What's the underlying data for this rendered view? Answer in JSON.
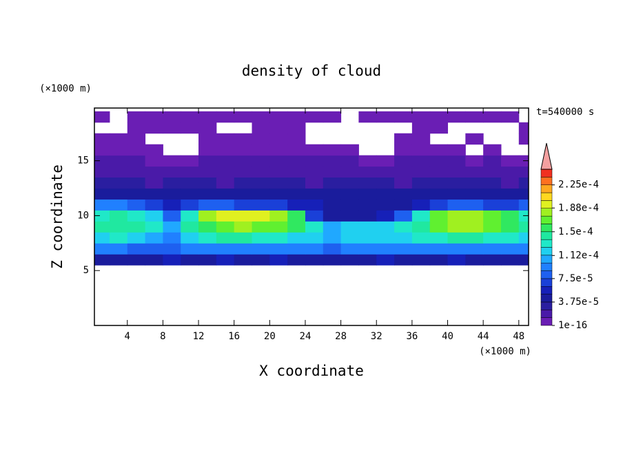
{
  "chart_data": {
    "type": "contour",
    "title": "density of cloud",
    "annotation": "t=540000 s",
    "xlabel": "X coordinate",
    "ylabel": "Z coordinate",
    "xunit": "(×1000 m)",
    "yunit": "(×1000 m)",
    "xlim": [
      0.3,
      49.1
    ],
    "ylim": [
      0,
      19.8
    ],
    "xticks": [
      4,
      8,
      12,
      16,
      20,
      24,
      28,
      32,
      36,
      40,
      44,
      48
    ],
    "yticks": [
      5,
      10,
      15
    ],
    "x": [
      1,
      3,
      5,
      7,
      9,
      11,
      13,
      15,
      17,
      19,
      21,
      23,
      25,
      27,
      29,
      31,
      33,
      35,
      37,
      39,
      41,
      43,
      45,
      47,
      49
    ],
    "z": [
      6,
      7,
      8,
      9,
      10,
      11,
      12,
      13,
      14,
      15,
      16,
      17,
      18,
      19
    ],
    "values": [
      [
        5e-05,
        5e-05,
        4e-05,
        5e-05,
        6e-05,
        5e-05,
        5e-05,
        6e-05,
        5e-05,
        5e-05,
        6e-05,
        5e-05,
        5e-05,
        4e-05,
        5e-05,
        5e-05,
        6e-05,
        5e-05,
        5e-05,
        5e-05,
        6e-05,
        5e-05,
        5e-05,
        5e-05,
        5e-05
      ],
      [
        9e-05,
        9e-05,
        8e-05,
        8e-05,
        8e-05,
        9e-05,
        0.0001,
        0.0001,
        9e-05,
        0.0001,
        0.0001,
        9e-05,
        9e-05,
        8e-05,
        9e-05,
        9e-05,
        0.0001,
        0.0001,
        9e-05,
        9e-05,
        0.0001,
        0.0001,
        9e-05,
        9e-05,
        9e-05
      ],
      [
        0.00012,
        0.00013,
        0.000125,
        0.00011,
        0.0001,
        0.00012,
        0.000135,
        0.00014,
        0.00014,
        0.000135,
        0.00013,
        0.000125,
        0.000115,
        0.00011,
        0.00012,
        0.00012,
        0.00012,
        0.000125,
        0.00013,
        0.000135,
        0.00014,
        0.00014,
        0.000135,
        0.00013,
        0.00012
      ],
      [
        0.000145,
        0.00015,
        0.000145,
        0.00013,
        0.00011,
        0.00014,
        0.00016,
        0.000175,
        0.00018,
        0.000175,
        0.00017,
        0.000155,
        0.00013,
        0.00011,
        0.00012,
        0.000115,
        0.00012,
        0.00013,
        0.00015,
        0.00017,
        0.00018,
        0.00018,
        0.00017,
        0.000155,
        0.00014
      ],
      [
        0.000135,
        0.00014,
        0.000135,
        0.00012,
        8e-05,
        0.00013,
        0.00018,
        0.000195,
        0.000195,
        0.00019,
        0.00018,
        0.00016,
        7e-05,
        5e-05,
        5e-05,
        5e-05,
        6e-05,
        8e-05,
        0.00013,
        0.000175,
        0.000185,
        0.000185,
        0.000175,
        0.000155,
        0.00013
      ],
      [
        9e-05,
        9e-05,
        8e-05,
        7e-05,
        6e-05,
        7e-05,
        8e-05,
        8e-05,
        7e-05,
        7e-05,
        7e-05,
        6e-05,
        6e-05,
        5e-05,
        4e-05,
        4e-05,
        4e-05,
        5e-05,
        6e-05,
        7e-05,
        8e-05,
        8e-05,
        7e-05,
        7e-05,
        8e-05
      ],
      [
        5e-05,
        5e-05,
        4e-05,
        4e-05,
        4e-05,
        4e-05,
        4e-05,
        4e-05,
        4e-05,
        4e-05,
        4e-05,
        4e-05,
        4e-05,
        4e-05,
        4e-05,
        4e-05,
        4e-05,
        4e-05,
        4e-05,
        4e-05,
        5e-05,
        5e-05,
        4e-05,
        4e-05,
        5e-05
      ],
      [
        3e-05,
        3e-05,
        3e-05,
        2.5e-05,
        3e-05,
        3e-05,
        3e-05,
        2.5e-05,
        3e-05,
        3e-05,
        3e-05,
        3e-05,
        2.5e-05,
        3e-05,
        3e-05,
        3e-05,
        3e-05,
        2.5e-05,
        3e-05,
        3e-05,
        3e-05,
        3e-05,
        3e-05,
        2.5e-05,
        3e-05
      ],
      [
        2e-05,
        2e-05,
        2e-05,
        2e-05,
        2e-05,
        1.5e-05,
        2e-05,
        2e-05,
        2e-05,
        2e-05,
        2e-05,
        2e-05,
        2e-05,
        2e-05,
        2e-05,
        1.5e-05,
        2e-05,
        2e-05,
        2e-05,
        2e-05,
        2e-05,
        2e-05,
        2e-05,
        2e-05,
        2e-05
      ],
      [
        1.5e-05,
        1.5e-05,
        1.5e-05,
        1e-05,
        1e-05,
        1e-05,
        1.5e-05,
        1.5e-05,
        1.5e-05,
        1.5e-05,
        1.5e-05,
        1.5e-05,
        1.5e-05,
        1.5e-05,
        1.5e-05,
        1e-05,
        1e-05,
        1.5e-05,
        1.5e-05,
        1.5e-05,
        1.5e-05,
        1e-05,
        1.5e-05,
        1e-05,
        1e-05
      ],
      [
        1e-05,
        1e-05,
        8e-06,
        6e-06,
        null,
        null,
        6e-06,
        1e-05,
        1e-05,
        1e-05,
        1e-05,
        1e-05,
        1e-05,
        1e-05,
        1e-05,
        null,
        null,
        8e-06,
        1e-05,
        1e-05,
        8e-06,
        null,
        6e-06,
        null,
        null
      ],
      [
        8e-06,
        5e-06,
        5e-06,
        null,
        null,
        null,
        5e-06,
        8e-06,
        8e-06,
        8e-06,
        8e-06,
        5e-06,
        null,
        null,
        null,
        null,
        null,
        5e-06,
        5e-06,
        null,
        null,
        5e-06,
        null,
        null,
        5e-06
      ],
      [
        null,
        null,
        5e-06,
        5e-06,
        5e-06,
        5e-06,
        5e-06,
        null,
        null,
        5e-06,
        5e-06,
        5e-06,
        null,
        null,
        null,
        null,
        null,
        null,
        5e-06,
        5e-06,
        null,
        null,
        null,
        null,
        5e-06
      ],
      [
        5e-06,
        null,
        5e-06,
        5e-06,
        5e-06,
        5e-06,
        5e-06,
        5e-06,
        5e-06,
        5e-06,
        5e-06,
        5e-06,
        5e-06,
        5e-06,
        null,
        5e-06,
        5e-06,
        5e-06,
        5e-06,
        5e-06,
        5e-06,
        5e-06,
        5e-06,
        5e-06,
        null
      ]
    ],
    "colorbar": {
      "lim": [
        1e-16,
        0.00025
      ],
      "ticks": [
        1e-16,
        {
          "value": 3.75e-05,
          "label": "3.75e-5"
        },
        {
          "value": 7.5e-05,
          "label": "7.5e-5"
        },
        {
          "value": 0.000112,
          "label": "1.12e-4"
        },
        {
          "value": 0.00015,
          "label": "1.5e-4"
        },
        {
          "value": 0.000188,
          "label": "1.88e-4"
        },
        {
          "value": 0.000225,
          "label": "2.25e-4"
        }
      ],
      "colors": [
        "#6a1eb4",
        "#4a1aa8",
        "#2a1ea0",
        "#1a1c9c",
        "#1620b8",
        "#1a40d8",
        "#1e60f0",
        "#2080ff",
        "#20a8ff",
        "#20d0f0",
        "#20e8c8",
        "#20e8a0",
        "#30e860",
        "#60f030",
        "#a0f020",
        "#e0f020",
        "#ffd820",
        "#ffa820",
        "#ff7020",
        "#f03020"
      ],
      "extend_color": "#f4a0a0"
    }
  }
}
